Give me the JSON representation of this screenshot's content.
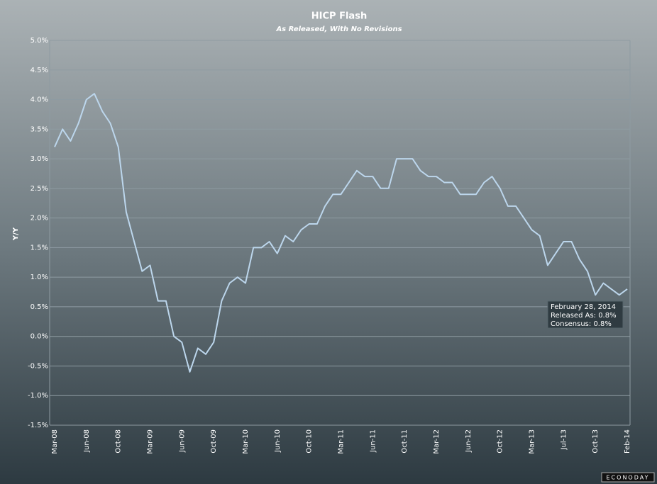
{
  "chart_data": {
    "type": "line",
    "title": "HICP Flash",
    "subtitle": "As Released, With No Revisions",
    "y_label": "Y/Y",
    "categories": [
      "Mar-08",
      null,
      null,
      null,
      "Jun-08",
      null,
      null,
      null,
      "Oct-08",
      null,
      null,
      null,
      "Mar-09",
      null,
      null,
      null,
      "Jun-09",
      null,
      null,
      null,
      "Oct-09",
      null,
      null,
      null,
      "Mar-10",
      null,
      null,
      null,
      "Jun-10",
      null,
      null,
      null,
      "Oct-10",
      null,
      null,
      null,
      "Mar-11",
      null,
      null,
      null,
      "Jun-11",
      null,
      null,
      null,
      "Oct-11",
      null,
      null,
      null,
      "Mar-12",
      null,
      null,
      null,
      "Jun-12",
      null,
      null,
      null,
      "Oct-12",
      null,
      null,
      null,
      "Mar-13",
      null,
      null,
      null,
      "Jul-13",
      null,
      null,
      null,
      "Oct-13",
      null,
      null,
      null,
      "Feb-14"
    ],
    "series": [
      {
        "name": "Released As",
        "color": "#bcd6ec",
        "values": [
          3.2,
          3.5,
          3.3,
          3.6,
          4.0,
          4.1,
          3.8,
          3.6,
          3.2,
          2.1,
          1.6,
          1.1,
          1.2,
          0.6,
          0.6,
          0.0,
          -0.1,
          -0.6,
          -0.2,
          -0.3,
          -0.1,
          0.6,
          0.9,
          1.0,
          0.9,
          1.5,
          1.5,
          1.6,
          1.4,
          1.7,
          1.6,
          1.8,
          1.9,
          1.9,
          2.2,
          2.4,
          2.4,
          2.6,
          2.8,
          2.7,
          2.7,
          2.5,
          2.5,
          3.0,
          3.0,
          3.0,
          2.8,
          2.7,
          2.7,
          2.6,
          2.6,
          2.4,
          2.4,
          2.4,
          2.6,
          2.7,
          2.5,
          2.2,
          2.2,
          2.0,
          1.8,
          1.7,
          1.2,
          1.4,
          1.6,
          1.6,
          1.3,
          1.1,
          0.7,
          0.9,
          0.8,
          0.7,
          0.8
        ]
      }
    ],
    "ylim": [
      -1.5,
      5.0
    ],
    "yticks": [
      {
        "value": -1.5,
        "label": "-1.5%"
      },
      {
        "value": -1.0,
        "label": "-1.0%"
      },
      {
        "value": -0.5,
        "label": "-0.5%"
      },
      {
        "value": 0.0,
        "label": "0.0%"
      },
      {
        "value": 0.5,
        "label": "0.5%"
      },
      {
        "value": 1.0,
        "label": "1.0%"
      },
      {
        "value": 1.5,
        "label": "1.5%"
      },
      {
        "value": 2.0,
        "label": "2.0%"
      },
      {
        "value": 2.5,
        "label": "2.5%"
      },
      {
        "value": 3.0,
        "label": "3.0%"
      },
      {
        "value": 3.5,
        "label": "3.5%"
      },
      {
        "value": 4.0,
        "label": "4.0%"
      },
      {
        "value": 4.5,
        "label": "4.5%"
      },
      {
        "value": 5.0,
        "label": "5.0%"
      }
    ],
    "grid": true,
    "tooltip": [
      "February 28, 2014",
      "Released As: 0.8%",
      "Consensus: 0.8%"
    ],
    "logo": "ECONODAY"
  }
}
